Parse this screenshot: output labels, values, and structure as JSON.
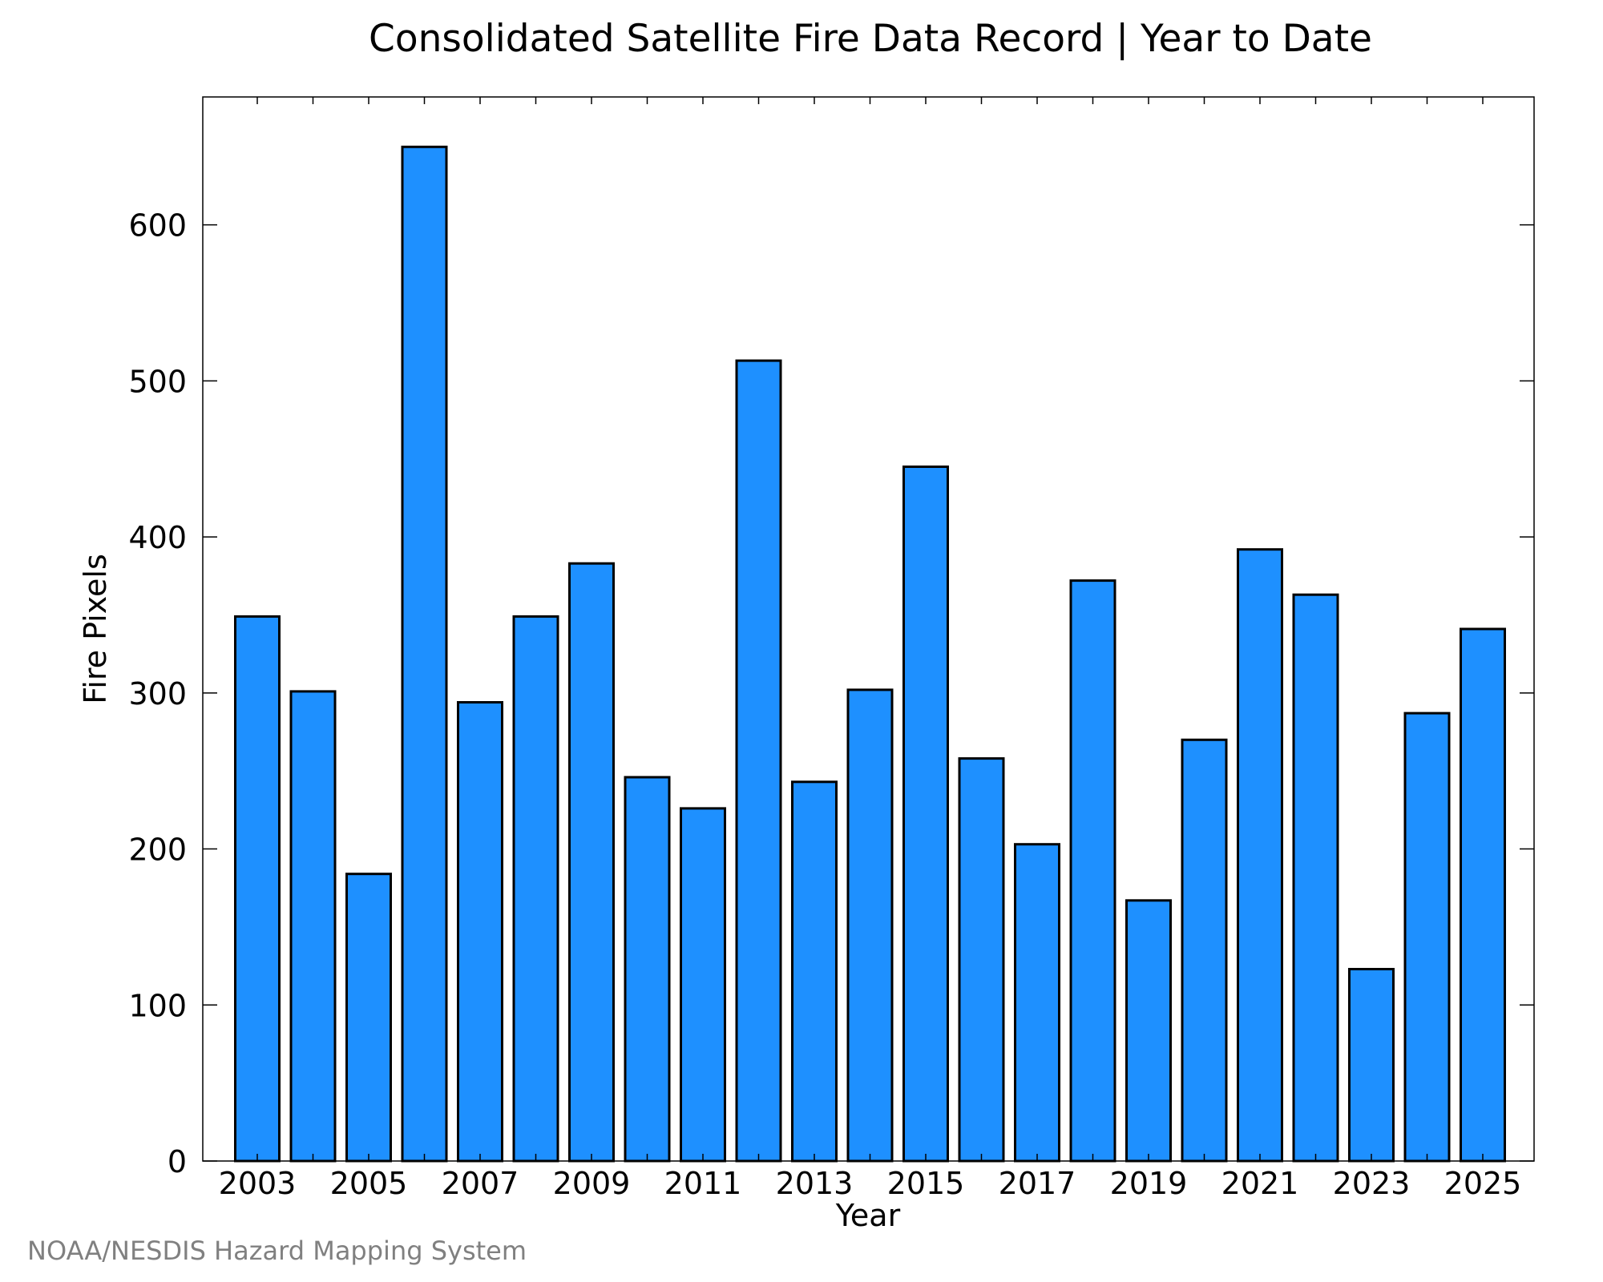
{
  "chart_data": {
    "type": "bar",
    "title": "Consolidated Satellite Fire Data Record | Year to Date",
    "xlabel": "Year",
    "ylabel": "Fire Pixels",
    "categories": [
      "2003",
      "2004",
      "2005",
      "2006",
      "2007",
      "2008",
      "2009",
      "2010",
      "2011",
      "2012",
      "2013",
      "2014",
      "2015",
      "2016",
      "2017",
      "2018",
      "2019",
      "2020",
      "2021",
      "2022",
      "2023",
      "2024",
      "2025"
    ],
    "values": [
      349,
      301,
      184,
      650,
      294,
      349,
      383,
      246,
      226,
      513,
      243,
      302,
      445,
      258,
      203,
      372,
      167,
      270,
      392,
      363,
      123,
      287,
      341
    ],
    "x_tick_labels": [
      "2003",
      "2005",
      "2007",
      "2009",
      "2011",
      "2013",
      "2015",
      "2017",
      "2019",
      "2021",
      "2023",
      "2025"
    ],
    "y_tick_labels": [
      "0",
      "100",
      "200",
      "300",
      "400",
      "500",
      "600"
    ],
    "y_ticks": [
      0,
      100,
      200,
      300,
      400,
      500,
      600
    ],
    "ylim": [
      0,
      682
    ],
    "grid": false,
    "legend": "none",
    "bar_color": "#1E90FF",
    "bar_edge_color": "#000000"
  },
  "credit": "NOAA/NESDIS Hazard Mapping System"
}
